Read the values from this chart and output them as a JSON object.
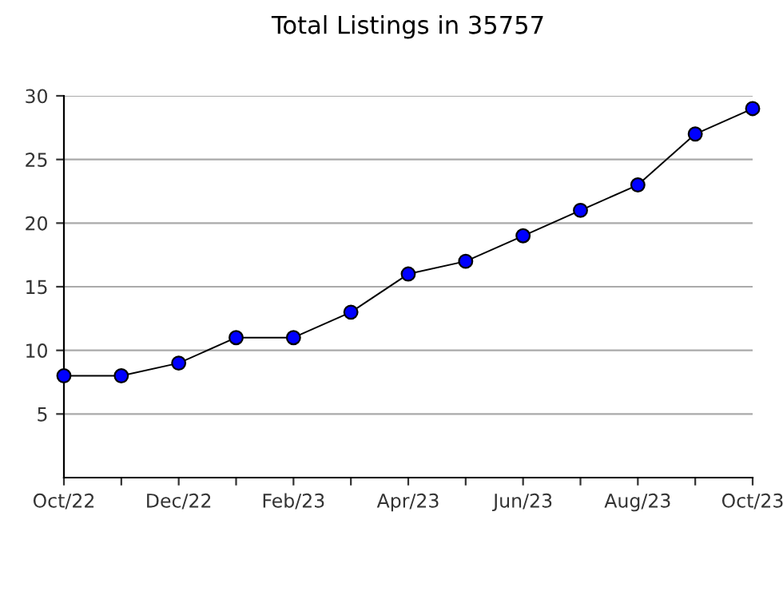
{
  "chart_data": {
    "type": "line",
    "title": "Total Listings in 35757",
    "categories": [
      "Oct/22",
      null,
      "Dec/22",
      null,
      "Feb/23",
      null,
      "Apr/23",
      null,
      "Jun/23",
      null,
      "Aug/23",
      null,
      "Oct/23"
    ],
    "series": [
      {
        "color": "#0000ff",
        "values": [
          8,
          8,
          9,
          11,
          11,
          13,
          16,
          17,
          19,
          21,
          23,
          27,
          29
        ]
      }
    ],
    "ylim": [
      0,
      30
    ],
    "yticks": [
      5,
      10,
      15,
      20,
      25,
      30
    ],
    "grid": "y",
    "marker": "circle",
    "line_style": "solid"
  }
}
